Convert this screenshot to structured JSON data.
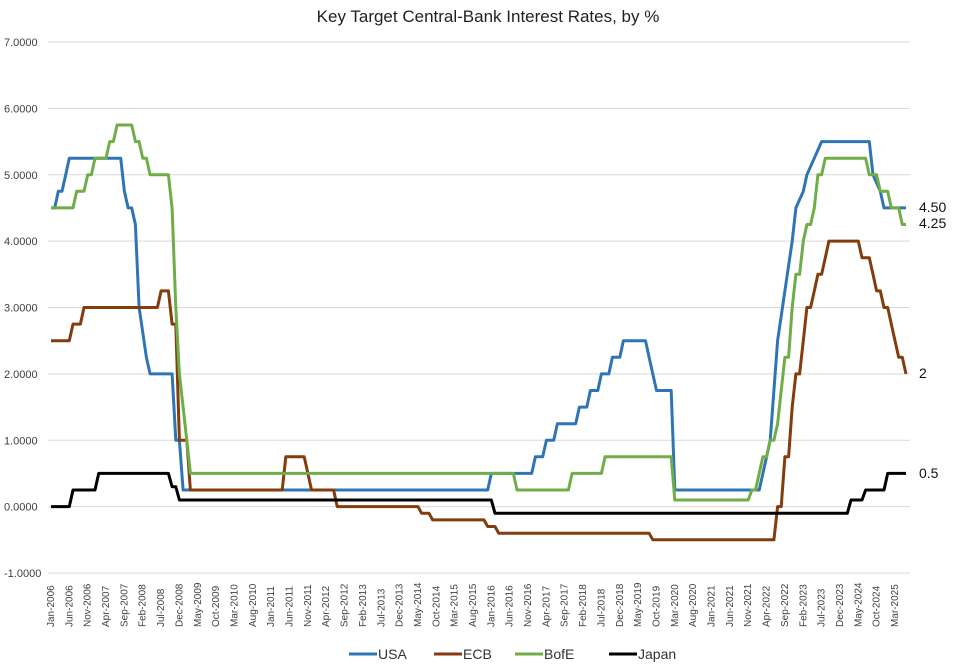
{
  "chart_data": {
    "type": "line",
    "title": "Key Target Central-Bank Interest Rates, by %",
    "xlabel": "",
    "ylabel": "",
    "ylim": [
      -1,
      7
    ],
    "y_ticks": [
      "7.0000",
      "6.0000",
      "5.0000",
      "4.0000",
      "3.0000",
      "2.0000",
      "1.0000",
      "0.0000",
      "-1.0000"
    ],
    "x_range": [
      "2006-01",
      "2025-06"
    ],
    "x_ticks": [
      "Jan-2006",
      "Jun-2006",
      "Nov-2006",
      "Apr-2007",
      "Sep-2007",
      "Feb-2008",
      "Jul-2008",
      "Dec-2008",
      "May-2009",
      "Oct-2009",
      "Mar-2010",
      "Aug-2010",
      "Jan-2011",
      "Jun-2011",
      "Nov-2011",
      "Apr-2012",
      "Sep-2012",
      "Feb-2013",
      "Jul-2013",
      "Dec-2013",
      "May-2014",
      "Oct-2014",
      "Mar-2015",
      "Aug-2015",
      "Jan-2016",
      "Jun-2016",
      "Nov-2016",
      "Apr-2017",
      "Sep-2017",
      "Feb-2018",
      "Jul-2018",
      "Dec-2018",
      "May-2019",
      "Oct-2019",
      "Mar-2020",
      "Aug-2020",
      "Jan-2021",
      "Jun-2021",
      "Nov-2021",
      "Apr-2022",
      "Sep-2022",
      "Feb-2023",
      "Jul-2023",
      "Dec-2023",
      "May-2024",
      "Oct-2024",
      "Mar-2025"
    ],
    "grid": "horizontal",
    "legend_position": "bottom",
    "series": [
      {
        "name": "USA",
        "color": "#2e75b6",
        "end_label": "4.50",
        "points": [
          [
            "2006-01",
            4.5
          ],
          [
            "2006-02",
            4.5
          ],
          [
            "2006-03",
            4.75
          ],
          [
            "2006-04",
            4.75
          ],
          [
            "2006-05",
            5.0
          ],
          [
            "2006-06",
            5.25
          ],
          [
            "2007-08",
            5.25
          ],
          [
            "2007-09",
            4.75
          ],
          [
            "2007-10",
            4.5
          ],
          [
            "2007-11",
            4.5
          ],
          [
            "2007-12",
            4.25
          ],
          [
            "2008-01",
            3.0
          ],
          [
            "2008-03",
            2.25
          ],
          [
            "2008-04",
            2.0
          ],
          [
            "2008-10",
            2.0
          ],
          [
            "2008-11",
            1.0
          ],
          [
            "2008-12",
            1.0
          ],
          [
            "2009-01",
            0.25
          ],
          [
            "2015-12",
            0.25
          ],
          [
            "2016-01",
            0.5
          ],
          [
            "2016-12",
            0.5
          ],
          [
            "2017-01",
            0.75
          ],
          [
            "2017-03",
            0.75
          ],
          [
            "2017-04",
            1.0
          ],
          [
            "2017-06",
            1.0
          ],
          [
            "2017-07",
            1.25
          ],
          [
            "2017-12",
            1.25
          ],
          [
            "2018-01",
            1.5
          ],
          [
            "2018-03",
            1.5
          ],
          [
            "2018-04",
            1.75
          ],
          [
            "2018-06",
            1.75
          ],
          [
            "2018-07",
            2.0
          ],
          [
            "2018-09",
            2.0
          ],
          [
            "2018-10",
            2.25
          ],
          [
            "2018-12",
            2.25
          ],
          [
            "2019-01",
            2.5
          ],
          [
            "2019-07",
            2.5
          ],
          [
            "2019-08",
            2.25
          ],
          [
            "2019-09",
            2.0
          ],
          [
            "2019-10",
            1.75
          ],
          [
            "2020-02",
            1.75
          ],
          [
            "2020-03",
            0.25
          ],
          [
            "2022-02",
            0.25
          ],
          [
            "2022-03",
            0.5
          ],
          [
            "2022-05",
            1.0
          ],
          [
            "2022-06",
            1.75
          ],
          [
            "2022-07",
            2.5
          ],
          [
            "2022-09",
            3.25
          ],
          [
            "2022-11",
            4.0
          ],
          [
            "2022-12",
            4.5
          ],
          [
            "2023-02",
            4.75
          ],
          [
            "2023-03",
            5.0
          ],
          [
            "2023-05",
            5.25
          ],
          [
            "2023-07",
            5.5
          ],
          [
            "2024-08",
            5.5
          ],
          [
            "2024-09",
            5.0
          ],
          [
            "2024-11",
            4.75
          ],
          [
            "2024-12",
            4.5
          ],
          [
            "2025-06",
            4.5
          ]
        ]
      },
      {
        "name": "ECB",
        "color": "#843c0c",
        "end_label": "2",
        "points": [
          [
            "2006-01",
            2.5
          ],
          [
            "2006-02",
            2.5
          ],
          [
            "2006-03",
            2.5
          ],
          [
            "2006-06",
            2.5
          ],
          [
            "2006-07",
            2.75
          ],
          [
            "2006-09",
            2.75
          ],
          [
            "2006-10",
            3.0
          ],
          [
            "2006-12",
            3.0
          ],
          [
            "2007-01",
            3.0
          ],
          [
            "2007-06",
            3.0
          ],
          [
            "2008-06",
            3.0
          ],
          [
            "2008-07",
            3.25
          ],
          [
            "2008-09",
            3.25
          ],
          [
            "2008-10",
            2.75
          ],
          [
            "2008-11",
            2.75
          ],
          [
            "2008-12",
            1.0
          ],
          [
            "2009-02",
            1.0
          ],
          [
            "2009-03",
            0.25
          ],
          [
            "2011-03",
            0.25
          ],
          [
            "2011-04",
            0.25
          ],
          [
            "2011-05",
            0.75
          ],
          [
            "2011-06",
            0.75
          ],
          [
            "2011-07",
            0.75
          ],
          [
            "2011-08",
            0.75
          ],
          [
            "2011-09",
            0.75
          ],
          [
            "2011-10",
            0.75
          ],
          [
            "2011-11",
            0.5
          ],
          [
            "2011-12",
            0.25
          ],
          [
            "2012-06",
            0.25
          ],
          [
            "2012-07",
            0.0
          ],
          [
            "2014-05",
            0.0
          ],
          [
            "2014-06",
            -0.1
          ],
          [
            "2014-08",
            -0.1
          ],
          [
            "2014-09",
            -0.2
          ],
          [
            "2015-11",
            -0.2
          ],
          [
            "2015-12",
            -0.3
          ],
          [
            "2016-02",
            -0.3
          ],
          [
            "2016-03",
            -0.4
          ],
          [
            "2019-08",
            -0.4
          ],
          [
            "2019-09",
            -0.5
          ],
          [
            "2022-06",
            -0.5
          ],
          [
            "2022-07",
            0.0
          ],
          [
            "2022-08",
            0.0
          ],
          [
            "2022-09",
            0.75
          ],
          [
            "2022-10",
            0.75
          ],
          [
            "2022-11",
            1.5
          ],
          [
            "2022-12",
            2.0
          ],
          [
            "2023-01",
            2.0
          ],
          [
            "2023-02",
            2.5
          ],
          [
            "2023-03",
            3.0
          ],
          [
            "2023-04",
            3.0
          ],
          [
            "2023-05",
            3.25
          ],
          [
            "2023-06",
            3.5
          ],
          [
            "2023-07",
            3.5
          ],
          [
            "2023-08",
            3.75
          ],
          [
            "2023-09",
            4.0
          ],
          [
            "2024-05",
            4.0
          ],
          [
            "2024-06",
            3.75
          ],
          [
            "2024-08",
            3.75
          ],
          [
            "2024-09",
            3.5
          ],
          [
            "2024-10",
            3.25
          ],
          [
            "2024-11",
            3.25
          ],
          [
            "2024-12",
            3.0
          ],
          [
            "2025-01",
            3.0
          ],
          [
            "2025-02",
            2.75
          ],
          [
            "2025-03",
            2.5
          ],
          [
            "2025-04",
            2.25
          ],
          [
            "2025-05",
            2.25
          ],
          [
            "2025-06",
            2.0
          ]
        ]
      },
      {
        "name": "BofE",
        "color": "#70ad47",
        "end_label": "4.25",
        "points": [
          [
            "2006-01",
            4.5
          ],
          [
            "2006-07",
            4.5
          ],
          [
            "2006-08",
            4.75
          ],
          [
            "2006-10",
            4.75
          ],
          [
            "2006-11",
            5.0
          ],
          [
            "2006-12",
            5.0
          ],
          [
            "2007-01",
            5.25
          ],
          [
            "2007-04",
            5.25
          ],
          [
            "2007-05",
            5.5
          ],
          [
            "2007-06",
            5.5
          ],
          [
            "2007-07",
            5.75
          ],
          [
            "2007-11",
            5.75
          ],
          [
            "2007-12",
            5.5
          ],
          [
            "2008-01",
            5.5
          ],
          [
            "2008-02",
            5.25
          ],
          [
            "2008-03",
            5.25
          ],
          [
            "2008-04",
            5.0
          ],
          [
            "2008-09",
            5.0
          ],
          [
            "2008-10",
            4.5
          ],
          [
            "2008-11",
            3.0
          ],
          [
            "2008-12",
            2.0
          ],
          [
            "2009-01",
            1.5
          ],
          [
            "2009-02",
            1.0
          ],
          [
            "2009-03",
            0.5
          ],
          [
            "2016-07",
            0.5
          ],
          [
            "2016-08",
            0.25
          ],
          [
            "2017-10",
            0.25
          ],
          [
            "2017-11",
            0.5
          ],
          [
            "2018-07",
            0.5
          ],
          [
            "2018-08",
            0.75
          ],
          [
            "2020-02",
            0.75
          ],
          [
            "2020-03",
            0.1
          ],
          [
            "2021-11",
            0.1
          ],
          [
            "2021-12",
            0.25
          ],
          [
            "2022-01",
            0.25
          ],
          [
            "2022-02",
            0.5
          ],
          [
            "2022-03",
            0.75
          ],
          [
            "2022-04",
            0.75
          ],
          [
            "2022-05",
            1.0
          ],
          [
            "2022-06",
            1.0
          ],
          [
            "2022-07",
            1.25
          ],
          [
            "2022-08",
            1.75
          ],
          [
            "2022-09",
            2.25
          ],
          [
            "2022-10",
            2.25
          ],
          [
            "2022-11",
            3.0
          ],
          [
            "2022-12",
            3.5
          ],
          [
            "2023-01",
            3.5
          ],
          [
            "2023-02",
            4.0
          ],
          [
            "2023-03",
            4.25
          ],
          [
            "2023-04",
            4.25
          ],
          [
            "2023-05",
            4.5
          ],
          [
            "2023-06",
            5.0
          ],
          [
            "2023-07",
            5.0
          ],
          [
            "2023-08",
            5.25
          ],
          [
            "2024-07",
            5.25
          ],
          [
            "2024-08",
            5.0
          ],
          [
            "2024-10",
            5.0
          ],
          [
            "2024-11",
            4.75
          ],
          [
            "2025-01",
            4.75
          ],
          [
            "2025-02",
            4.5
          ],
          [
            "2025-04",
            4.5
          ],
          [
            "2025-05",
            4.25
          ],
          [
            "2025-06",
            4.25
          ]
        ]
      },
      {
        "name": "Japan",
        "color": "#000000",
        "end_label": "0.5",
        "points": [
          [
            "2006-01",
            0.0
          ],
          [
            "2006-06",
            0.0
          ],
          [
            "2006-07",
            0.25
          ],
          [
            "2007-01",
            0.25
          ],
          [
            "2007-02",
            0.5
          ],
          [
            "2008-09",
            0.5
          ],
          [
            "2008-10",
            0.3
          ],
          [
            "2008-11",
            0.3
          ],
          [
            "2008-12",
            0.1
          ],
          [
            "2016-01",
            0.1
          ],
          [
            "2016-02",
            -0.1
          ],
          [
            "2024-02",
            -0.1
          ],
          [
            "2024-03",
            0.1
          ],
          [
            "2024-06",
            0.1
          ],
          [
            "2024-07",
            0.25
          ],
          [
            "2024-12",
            0.25
          ],
          [
            "2025-01",
            0.5
          ],
          [
            "2025-06",
            0.5
          ]
        ]
      }
    ]
  }
}
